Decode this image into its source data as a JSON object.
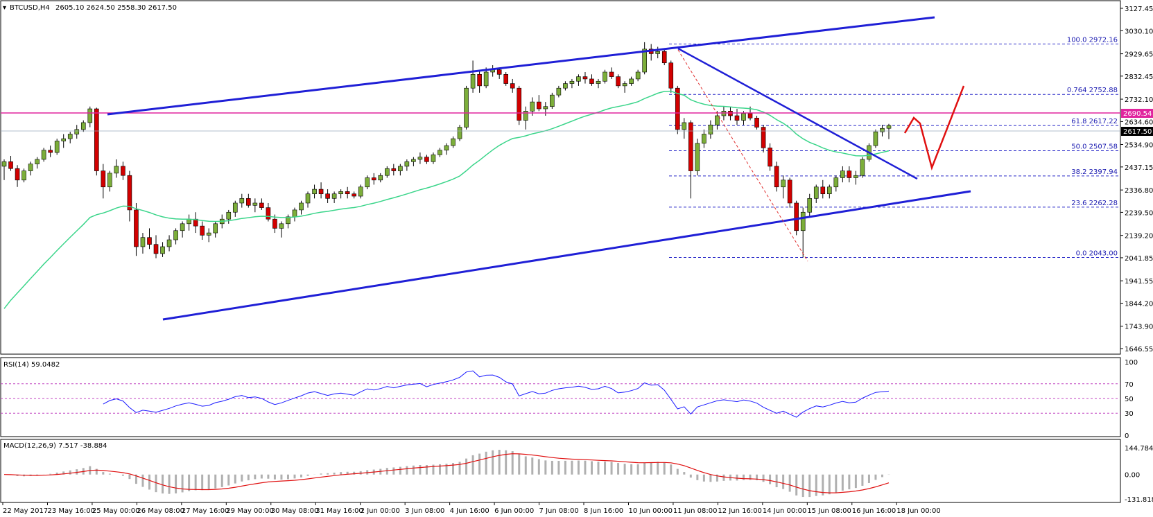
{
  "header": {
    "symbol_label": "BTCUSD,H4",
    "ohlc_text": "2605.10 2624.50 2558.30 2617.50"
  },
  "colors": {
    "bull": "#6b8e23",
    "bear": "#d20000",
    "ma": "#3ad58a",
    "trend": "#1f1fd6",
    "resistance": "#e0249e",
    "fib": "#2828c8",
    "dashed_trend": "#e03030",
    "forecast": "#e01010",
    "rsi_line": "#1a1aff",
    "rsi_level": "#c040c0",
    "macd_hist": "#b0b0b0",
    "macd_signal": "#e01010"
  },
  "price_panel": {
    "current_price_label": "2617.50",
    "resistance_label": "2690.54",
    "axis_ticks": [
      "3127.45",
      "3030.10",
      "2929.65",
      "2832.45",
      "2732.10",
      "2634.60",
      "2534.90",
      "2437.15",
      "2336.80",
      "2239.50",
      "2139.20",
      "2041.85",
      "1941.55",
      "1844.20",
      "1743.90",
      "1646.55"
    ],
    "fib_levels": [
      {
        "label": "100.0  2972.16"
      },
      {
        "label": "0.764  2752.88"
      },
      {
        "label": "61.8  2617.22"
      },
      {
        "label": "50.0  2507.58"
      },
      {
        "label": "38.2  2397.94"
      },
      {
        "label": "23.6  2262.28"
      },
      {
        "label": "0.0  2043.00"
      }
    ]
  },
  "rsi_panel": {
    "label": "RSI(14) 59.0482",
    "axis_ticks": [
      "100",
      "70",
      "50",
      "30",
      "0"
    ]
  },
  "macd_panel": {
    "label": "MACD(12,26,9) 7.517 -38.884",
    "axis_ticks": [
      "144.784",
      "0.00",
      "-131.818"
    ]
  },
  "time_axis": [
    "22 May 2017",
    "23 May 16:00",
    "25 May 00:00",
    "26 May 08:00",
    "27 May 16:00",
    "29 May 00:00",
    "30 May 08:00",
    "31 May 16:00",
    "2 Jun 00:00",
    "3 Jun 08:00",
    "4 Jun 16:00",
    "6 Jun 00:00",
    "7 Jun 08:00",
    "8 Jun 16:00",
    "10 Jun 00:00",
    "11 Jun 08:00",
    "12 Jun 16:00",
    "14 Jun 00:00",
    "15 Jun 08:00",
    "16 Jun 16:00",
    "18 Jun 00:00"
  ],
  "chart_data": {
    "type": "candlestick",
    "title": "BTCUSD,H4",
    "ylim": [
      1646.55,
      3127.45
    ],
    "candles": [
      [
        2440,
        2470,
        2380,
        2460
      ],
      [
        2460,
        2485,
        2420,
        2430
      ],
      [
        2430,
        2445,
        2350,
        2380
      ],
      [
        2380,
        2430,
        2370,
        2420
      ],
      [
        2420,
        2460,
        2400,
        2450
      ],
      [
        2450,
        2480,
        2430,
        2470
      ],
      [
        2470,
        2520,
        2460,
        2510
      ],
      [
        2510,
        2530,
        2480,
        2500
      ],
      [
        2500,
        2560,
        2490,
        2550
      ],
      [
        2550,
        2580,
        2520,
        2560
      ],
      [
        2560,
        2590,
        2540,
        2580
      ],
      [
        2580,
        2620,
        2560,
        2600
      ],
      [
        2600,
        2640,
        2590,
        2630
      ],
      [
        2630,
        2700,
        2610,
        2690
      ],
      [
        2690,
        2695,
        2400,
        2420
      ],
      [
        2420,
        2450,
        2300,
        2350
      ],
      [
        2350,
        2420,
        2330,
        2410
      ],
      [
        2410,
        2470,
        2390,
        2440
      ],
      [
        2440,
        2460,
        2380,
        2400
      ],
      [
        2400,
        2420,
        2200,
        2250
      ],
      [
        2250,
        2280,
        2050,
        2090
      ],
      [
        2090,
        2150,
        2060,
        2130
      ],
      [
        2130,
        2170,
        2080,
        2100
      ],
      [
        2100,
        2140,
        2040,
        2060
      ],
      [
        2060,
        2110,
        2045,
        2090
      ],
      [
        2090,
        2140,
        2070,
        2120
      ],
      [
        2120,
        2170,
        2100,
        2160
      ],
      [
        2160,
        2200,
        2130,
        2190
      ],
      [
        2190,
        2230,
        2160,
        2210
      ],
      [
        2210,
        2240,
        2150,
        2180
      ],
      [
        2180,
        2200,
        2120,
        2140
      ],
      [
        2140,
        2170,
        2110,
        2150
      ],
      [
        2150,
        2200,
        2130,
        2190
      ],
      [
        2190,
        2230,
        2170,
        2210
      ],
      [
        2210,
        2250,
        2190,
        2240
      ],
      [
        2240,
        2290,
        2220,
        2280
      ],
      [
        2280,
        2320,
        2260,
        2300
      ],
      [
        2300,
        2320,
        2260,
        2270
      ],
      [
        2270,
        2300,
        2240,
        2280
      ],
      [
        2280,
        2300,
        2250,
        2260
      ],
      [
        2260,
        2280,
        2200,
        2210
      ],
      [
        2210,
        2230,
        2150,
        2170
      ],
      [
        2170,
        2200,
        2130,
        2190
      ],
      [
        2190,
        2230,
        2170,
        2220
      ],
      [
        2220,
        2260,
        2200,
        2250
      ],
      [
        2250,
        2290,
        2230,
        2280
      ],
      [
        2280,
        2330,
        2260,
        2320
      ],
      [
        2320,
        2360,
        2300,
        2340
      ],
      [
        2340,
        2370,
        2300,
        2320
      ],
      [
        2320,
        2340,
        2280,
        2300
      ],
      [
        2300,
        2330,
        2280,
        2320
      ],
      [
        2320,
        2340,
        2300,
        2330
      ],
      [
        2330,
        2350,
        2300,
        2320
      ],
      [
        2320,
        2330,
        2300,
        2310
      ],
      [
        2310,
        2360,
        2300,
        2350
      ],
      [
        2350,
        2400,
        2340,
        2390
      ],
      [
        2390,
        2410,
        2360,
        2380
      ],
      [
        2380,
        2410,
        2370,
        2400
      ],
      [
        2400,
        2440,
        2390,
        2430
      ],
      [
        2430,
        2450,
        2400,
        2420
      ],
      [
        2420,
        2450,
        2400,
        2440
      ],
      [
        2440,
        2470,
        2420,
        2460
      ],
      [
        2460,
        2480,
        2440,
        2470
      ],
      [
        2470,
        2500,
        2450,
        2480
      ],
      [
        2480,
        2490,
        2450,
        2460
      ],
      [
        2460,
        2500,
        2450,
        2490
      ],
      [
        2490,
        2520,
        2480,
        2510
      ],
      [
        2510,
        2540,
        2490,
        2530
      ],
      [
        2530,
        2570,
        2520,
        2560
      ],
      [
        2560,
        2620,
        2550,
        2610
      ],
      [
        2610,
        2790,
        2600,
        2780
      ],
      [
        2780,
        2900,
        2760,
        2840
      ],
      [
        2840,
        2860,
        2760,
        2790
      ],
      [
        2790,
        2870,
        2780,
        2850
      ],
      [
        2850,
        2880,
        2830,
        2860
      ],
      [
        2860,
        2870,
        2820,
        2840
      ],
      [
        2840,
        2850,
        2790,
        2800
      ],
      [
        2800,
        2820,
        2760,
        2780
      ],
      [
        2780,
        2790,
        2620,
        2640
      ],
      [
        2640,
        2700,
        2600,
        2680
      ],
      [
        2680,
        2740,
        2660,
        2720
      ],
      [
        2720,
        2750,
        2680,
        2690
      ],
      [
        2690,
        2720,
        2660,
        2700
      ],
      [
        2700,
        2760,
        2690,
        2750
      ],
      [
        2750,
        2790,
        2740,
        2780
      ],
      [
        2780,
        2810,
        2770,
        2800
      ],
      [
        2800,
        2820,
        2780,
        2810
      ],
      [
        2810,
        2840,
        2790,
        2830
      ],
      [
        2830,
        2850,
        2800,
        2820
      ],
      [
        2820,
        2840,
        2790,
        2800
      ],
      [
        2800,
        2820,
        2780,
        2810
      ],
      [
        2810,
        2860,
        2800,
        2850
      ],
      [
        2850,
        2870,
        2820,
        2830
      ],
      [
        2830,
        2840,
        2780,
        2790
      ],
      [
        2790,
        2810,
        2760,
        2800
      ],
      [
        2800,
        2830,
        2790,
        2820
      ],
      [
        2820,
        2860,
        2810,
        2850
      ],
      [
        2850,
        2980,
        2840,
        2950
      ],
      [
        2950,
        2972,
        2900,
        2930
      ],
      [
        2930,
        2960,
        2910,
        2940
      ],
      [
        2940,
        2950,
        2880,
        2890
      ],
      [
        2890,
        2900,
        2760,
        2780
      ],
      [
        2780,
        2790,
        2580,
        2600
      ],
      [
        2600,
        2650,
        2560,
        2630
      ],
      [
        2630,
        2640,
        2300,
        2420
      ],
      [
        2420,
        2560,
        2400,
        2540
      ],
      [
        2540,
        2600,
        2520,
        2580
      ],
      [
        2580,
        2640,
        2560,
        2620
      ],
      [
        2620,
        2680,
        2600,
        2660
      ],
      [
        2660,
        2700,
        2640,
        2680
      ],
      [
        2680,
        2700,
        2640,
        2660
      ],
      [
        2660,
        2690,
        2620,
        2640
      ],
      [
        2640,
        2680,
        2620,
        2670
      ],
      [
        2670,
        2700,
        2640,
        2650
      ],
      [
        2650,
        2660,
        2600,
        2610
      ],
      [
        2610,
        2620,
        2500,
        2520
      ],
      [
        2520,
        2540,
        2420,
        2440
      ],
      [
        2440,
        2460,
        2330,
        2350
      ],
      [
        2350,
        2400,
        2300,
        2380
      ],
      [
        2380,
        2390,
        2260,
        2280
      ],
      [
        2280,
        2290,
        2140,
        2160
      ],
      [
        2160,
        2260,
        2043,
        2240
      ],
      [
        2240,
        2320,
        2220,
        2300
      ],
      [
        2300,
        2360,
        2280,
        2350
      ],
      [
        2350,
        2380,
        2300,
        2320
      ],
      [
        2320,
        2360,
        2300,
        2350
      ],
      [
        2350,
        2400,
        2330,
        2390
      ],
      [
        2390,
        2440,
        2370,
        2420
      ],
      [
        2420,
        2440,
        2370,
        2390
      ],
      [
        2390,
        2420,
        2360,
        2400
      ],
      [
        2400,
        2480,
        2390,
        2470
      ],
      [
        2470,
        2540,
        2460,
        2530
      ],
      [
        2530,
        2600,
        2520,
        2590
      ],
      [
        2590,
        2620,
        2570,
        2605
      ],
      [
        2605,
        2624.5,
        2558.3,
        2617.5
      ]
    ]
  }
}
